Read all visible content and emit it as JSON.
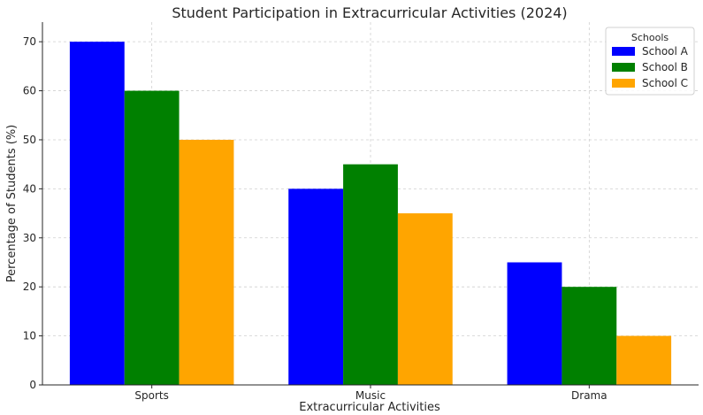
{
  "chart_data": {
    "type": "bar",
    "title": "Student Participation in Extracurricular Activities (2024)",
    "xlabel": "Extracurricular Activities",
    "ylabel": "Percentage of Students (%)",
    "categories": [
      "Sports",
      "Music",
      "Drama"
    ],
    "series": [
      {
        "name": "School A",
        "values": [
          70,
          40,
          25
        ],
        "color": "#0000ff"
      },
      {
        "name": "School B",
        "values": [
          60,
          45,
          20
        ],
        "color": "#008000"
      },
      {
        "name": "School C",
        "values": [
          50,
          35,
          10
        ],
        "color": "#ffa500"
      }
    ],
    "ylim": [
      0,
      74
    ],
    "yticks": [
      0,
      10,
      20,
      30,
      40,
      50,
      60,
      70
    ],
    "grid": true,
    "legend": {
      "title": "Schools",
      "placement": "top-right"
    }
  }
}
